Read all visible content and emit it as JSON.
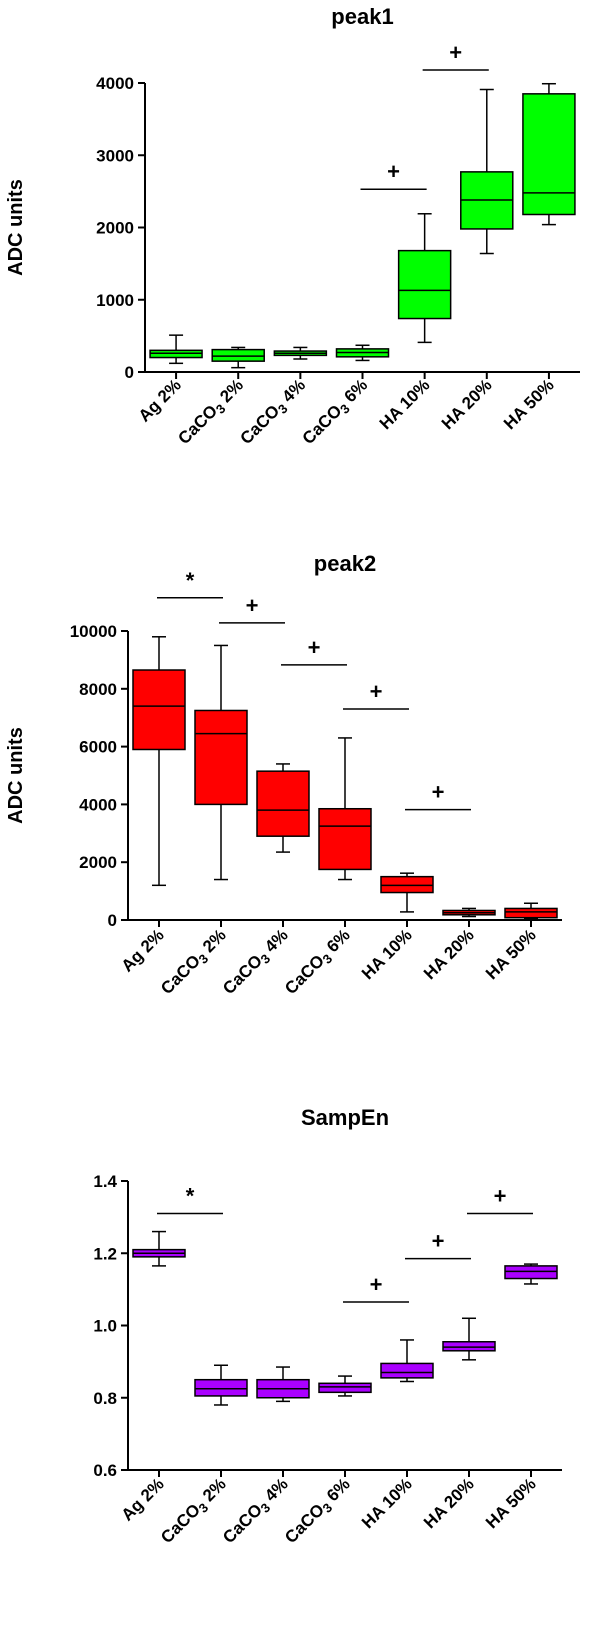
{
  "chart_data": [
    {
      "type": "box",
      "title": "peak1",
      "ylabel": "ADC units",
      "ylim": [
        0,
        4000
      ],
      "yticks": [
        "0",
        "1000",
        "2000",
        "3000",
        "4000"
      ],
      "categories": [
        "Ag 2%",
        "CaCO3 2%",
        "CaCO3 4%",
        "CaCO3 6%",
        "HA 10%",
        "HA 20%",
        "HA 50%"
      ],
      "fill": "#00ff00",
      "boxes": [
        {
          "min": 120,
          "q1": 200,
          "median": 260,
          "q3": 300,
          "max": 510
        },
        {
          "min": 60,
          "q1": 150,
          "median": 220,
          "q3": 310,
          "max": 340
        },
        {
          "min": 180,
          "q1": 230,
          "median": 260,
          "q3": 290,
          "max": 340
        },
        {
          "min": 160,
          "q1": 210,
          "median": 270,
          "q3": 320,
          "max": 370
        },
        {
          "min": 410,
          "q1": 740,
          "median": 1130,
          "q3": 1680,
          "max": 2190
        },
        {
          "min": 1640,
          "q1": 1980,
          "median": 2380,
          "q3": 2770,
          "max": 3910
        },
        {
          "min": 2040,
          "q1": 2180,
          "median": 2480,
          "q3": 3850,
          "max": 3990
        }
      ],
      "annotations": [
        {
          "label": "+",
          "from": 3,
          "to": 4,
          "y": 2530
        },
        {
          "label": "+",
          "from": 4,
          "to": 5,
          "y": 4180
        }
      ]
    },
    {
      "type": "box",
      "title": "peak2",
      "ylabel": "ADC units",
      "ylim": [
        0,
        10000
      ],
      "yticks": [
        "0",
        "2000",
        "4000",
        "6000",
        "8000",
        "10000"
      ],
      "categories": [
        "Ag 2%",
        "CaCO3 2%",
        "CaCO3 4%",
        "CaCO3 6%",
        "HA 10%",
        "HA 20%",
        "HA 50%"
      ],
      "fill": "#ff0000",
      "boxes": [
        {
          "min": 1200,
          "q1": 5900,
          "median": 7400,
          "q3": 8650,
          "max": 9800
        },
        {
          "min": 1400,
          "q1": 4000,
          "median": 6450,
          "q3": 7250,
          "max": 9500
        },
        {
          "min": 2350,
          "q1": 2900,
          "median": 3800,
          "q3": 5150,
          "max": 5400
        },
        {
          "min": 1400,
          "q1": 1750,
          "median": 3250,
          "q3": 3850,
          "max": 6300
        },
        {
          "min": 280,
          "q1": 950,
          "median": 1200,
          "q3": 1500,
          "max": 1620
        },
        {
          "min": 120,
          "q1": 180,
          "median": 250,
          "q3": 330,
          "max": 400
        },
        {
          "min": 50,
          "q1": 80,
          "median": 280,
          "q3": 400,
          "max": 580
        }
      ],
      "annotations": [
        {
          "label": "*",
          "from": 0,
          "to": 1,
          "y": 11150
        },
        {
          "label": "+",
          "from": 1,
          "to": 2,
          "y": 10280
        },
        {
          "label": "+",
          "from": 2,
          "to": 3,
          "y": 8830
        },
        {
          "label": "+",
          "from": 3,
          "to": 4,
          "y": 7300
        },
        {
          "label": "+",
          "from": 4,
          "to": 5,
          "y": 3820
        }
      ]
    },
    {
      "type": "box",
      "title": "SampEn",
      "ylabel": "",
      "ylim": [
        0.6,
        1.4
      ],
      "yticks": [
        "0.6",
        "0.8",
        "1.0",
        "1.2",
        "1.4"
      ],
      "categories": [
        "Ag 2%",
        "CaCO3 2%",
        "CaCO3 4%",
        "CaCO3 6%",
        "HA 10%",
        "HA 20%",
        "HA 50%"
      ],
      "fill": "#aa00ff",
      "boxes": [
        {
          "min": 1.165,
          "q1": 1.19,
          "median": 1.2,
          "q3": 1.21,
          "max": 1.26
        },
        {
          "min": 0.78,
          "q1": 0.805,
          "median": 0.825,
          "q3": 0.85,
          "max": 0.89
        },
        {
          "min": 0.79,
          "q1": 0.8,
          "median": 0.825,
          "q3": 0.85,
          "max": 0.885
        },
        {
          "min": 0.805,
          "q1": 0.815,
          "median": 0.83,
          "q3": 0.84,
          "max": 0.86
        },
        {
          "min": 0.845,
          "q1": 0.855,
          "median": 0.87,
          "q3": 0.895,
          "max": 0.96
        },
        {
          "min": 0.905,
          "q1": 0.93,
          "median": 0.94,
          "q3": 0.955,
          "max": 1.02
        },
        {
          "min": 1.115,
          "q1": 1.13,
          "median": 1.15,
          "q3": 1.165,
          "max": 1.17
        }
      ],
      "annotations": [
        {
          "label": "*",
          "from": 0,
          "to": 1,
          "y": 1.31
        },
        {
          "label": "+",
          "from": 3,
          "to": 4,
          "y": 1.065
        },
        {
          "label": "+",
          "from": 4,
          "to": 5,
          "y": 1.185
        },
        {
          "label": "+",
          "from": 5,
          "to": 6,
          "y": 1.31
        }
      ]
    }
  ]
}
